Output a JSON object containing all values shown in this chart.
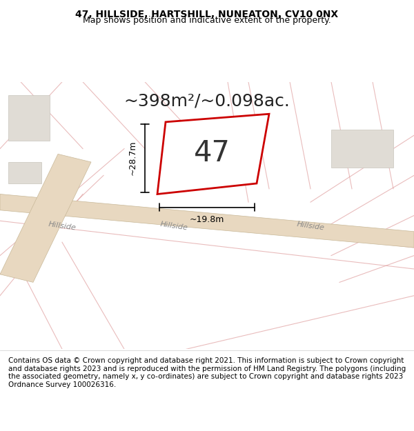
{
  "title_line1": "47, HILLSIDE, HARTSHILL, NUNEATON, CV10 0NX",
  "title_line2": "Map shows position and indicative extent of the property.",
  "area_text": "~398m²/~0.098ac.",
  "plot_number": "47",
  "dim_height": "~28.7m",
  "dim_width": "~19.8m",
  "footer_text": "Contains OS data © Crown copyright and database right 2021. This information is subject to Crown copyright and database rights 2023 and is reproduced with the permission of HM Land Registry. The polygons (including the associated geometry, namely x, y co-ordinates) are subject to Crown copyright and database rights 2023 Ordnance Survey 100026316.",
  "background_color": "#f5f5f5",
  "map_background": "#f0ede8",
  "road_color": "#e8d8c0",
  "road_line_color": "#c8b898",
  "grid_line_color": "#e0a0a0",
  "plot_fill": "#ffffff",
  "plot_edge_color": "#cc0000",
  "plot_edge_width": 2.0,
  "dim_line_color": "#000000",
  "street_label_color": "#888888",
  "title_fontsize": 10,
  "subtitle_fontsize": 9,
  "area_fontsize": 18,
  "plot_num_fontsize": 30,
  "dim_fontsize": 9,
  "footer_fontsize": 7.5
}
